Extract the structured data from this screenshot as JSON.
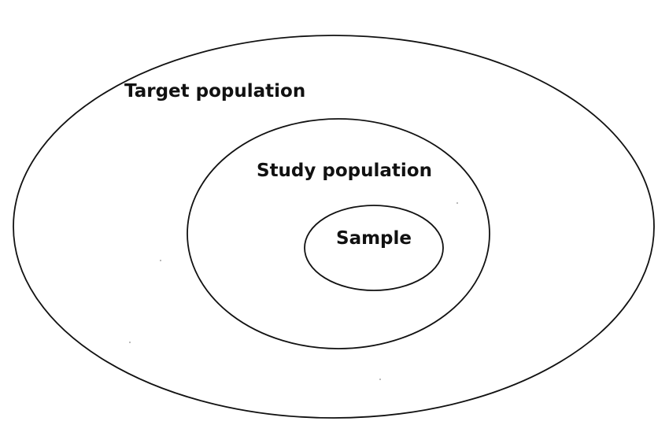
{
  "diagram": {
    "regions": [
      {
        "id": "outer",
        "label": "Target population"
      },
      {
        "id": "middle",
        "label": "Study population"
      },
      {
        "id": "inner",
        "label": "Sample"
      }
    ],
    "colors": {
      "stroke": "#111111",
      "background": "#ffffff",
      "text": "#111111"
    }
  }
}
